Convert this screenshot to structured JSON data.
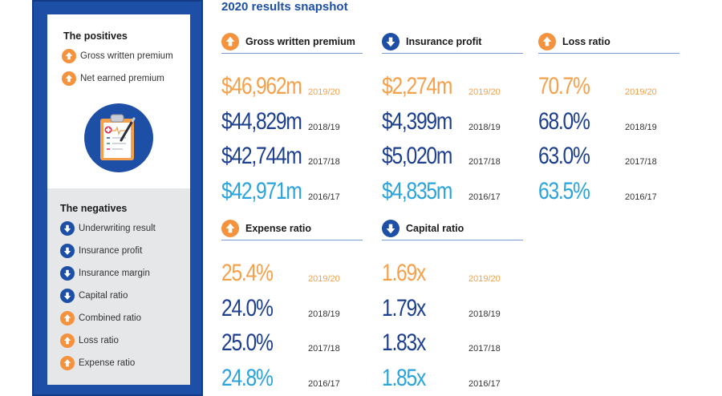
{
  "title": "2020 results snapshot",
  "sidebar": {
    "positives_title": "The positives",
    "positives": [
      {
        "label": "Gross written premium",
        "direction": "up"
      },
      {
        "label": "Net earned premium",
        "direction": "up"
      }
    ],
    "negatives_title": "The negatives",
    "negatives": [
      {
        "label": "Underwriting result",
        "direction": "down"
      },
      {
        "label": "Insurance profit",
        "direction": "down"
      },
      {
        "label": "Insurance margin",
        "direction": "down"
      },
      {
        "label": "Capital ratio",
        "direction": "down"
      },
      {
        "label": "Combined ratio",
        "direction": "up"
      },
      {
        "label": "Loss ratio",
        "direction": "up"
      },
      {
        "label": "Expense ratio",
        "direction": "up"
      }
    ]
  },
  "colors": {
    "up": "#f5923e",
    "down": "#1d4fa6"
  },
  "metrics": [
    {
      "label": "Gross written premium",
      "direction": "up",
      "rows": [
        {
          "value": "$46,962m",
          "year": "2019/20"
        },
        {
          "value": "$44,829m",
          "year": "2018/19"
        },
        {
          "value": "$42,744m",
          "year": "2017/18"
        },
        {
          "value": "$42,971m",
          "year": "2016/17"
        }
      ]
    },
    {
      "label": "Insurance profit",
      "direction": "down",
      "rows": [
        {
          "value": "$2,274m",
          "year": "2019/20"
        },
        {
          "value": "$4,399m",
          "year": "2018/19"
        },
        {
          "value": "$5,020m",
          "year": "2017/18"
        },
        {
          "value": "$4,835m",
          "year": "2016/17"
        }
      ]
    },
    {
      "label": "Loss ratio",
      "direction": "up",
      "rows": [
        {
          "value": "70.7%",
          "year": "2019/20"
        },
        {
          "value": "68.0%",
          "year": "2018/19"
        },
        {
          "value": "63.0%",
          "year": "2017/18"
        },
        {
          "value": "63.5%",
          "year": "2016/17"
        }
      ]
    },
    {
      "label": "Expense ratio",
      "direction": "up",
      "rows": [
        {
          "value": "25.4%",
          "year": "2019/20"
        },
        {
          "value": "24.0%",
          "year": "2018/19"
        },
        {
          "value": "25.0%",
          "year": "2017/18"
        },
        {
          "value": "24.8%",
          "year": "2016/17"
        }
      ]
    },
    {
      "label": "Capital ratio",
      "direction": "down",
      "rows": [
        {
          "value": "1.69x",
          "year": "2019/20"
        },
        {
          "value": "1.79x",
          "year": "2018/19"
        },
        {
          "value": "1.83x",
          "year": "2017/18"
        },
        {
          "value": "1.85x",
          "year": "2016/17"
        }
      ]
    }
  ]
}
